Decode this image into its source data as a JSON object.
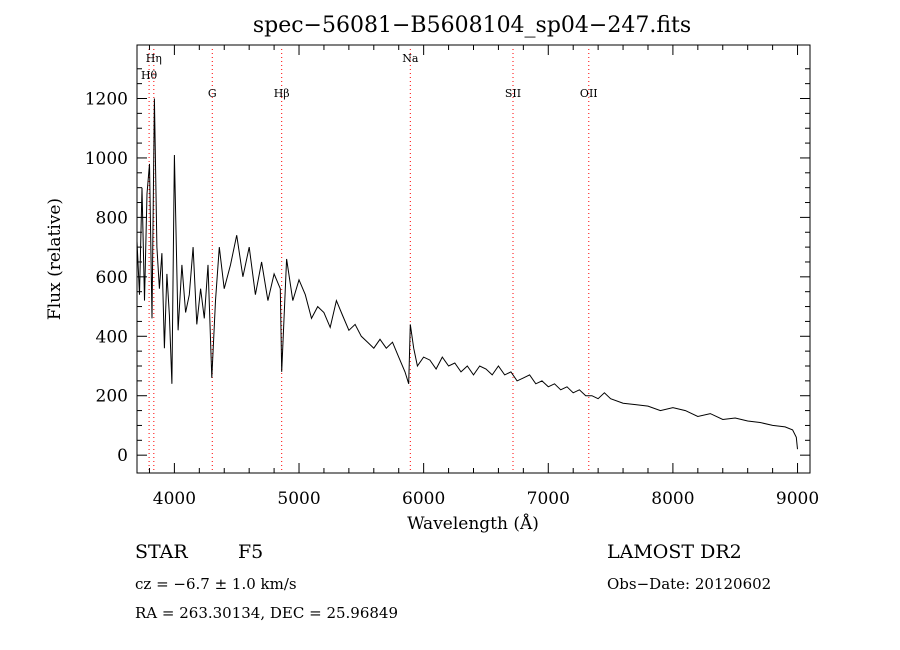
{
  "chart_data": {
    "type": "line",
    "title": "spec−56081−B5608104_sp04−247.fits",
    "xlabel": "Wavelength (Å)",
    "ylabel": "Flux (relative)",
    "xlim": [
      3700,
      9100
    ],
    "ylim": [
      -60,
      1380
    ],
    "x_ticks": [
      4000,
      5000,
      6000,
      7000,
      8000,
      9000
    ],
    "y_ticks": [
      0,
      200,
      400,
      600,
      800,
      1000,
      1200
    ],
    "line_color": "#000000",
    "marker_line_color": "#ff0000",
    "grid": false,
    "spectral_lines": [
      {
        "label": "Hη",
        "wavelength": 3835,
        "label_row": 1
      },
      {
        "label": "Hθ",
        "wavelength": 3797,
        "label_row": 2
      },
      {
        "label": "G",
        "wavelength": 4304,
        "label_row": 3
      },
      {
        "label": "Hβ",
        "wavelength": 4861,
        "label_row": 3
      },
      {
        "label": "Na",
        "wavelength": 5893,
        "label_row": 1
      },
      {
        "label": "SII",
        "wavelength": 6717,
        "label_row": 3
      },
      {
        "label": "OII",
        "wavelength": 7325,
        "label_row": 3
      }
    ],
    "series": [
      {
        "x": [
          3700,
          3720,
          3740,
          3760,
          3780,
          3800,
          3820,
          3840,
          3860,
          3880,
          3900,
          3920,
          3940,
          3960,
          3980,
          4000,
          4030,
          4060,
          4090,
          4120,
          4150,
          4180,
          4210,
          4240,
          4270,
          4300,
          4330,
          4360,
          4400,
          4450,
          4500,
          4550,
          4600,
          4650,
          4700,
          4750,
          4800,
          4850,
          4861,
          4900,
          4950,
          5000,
          5050,
          5100,
          5150,
          5200,
          5250,
          5300,
          5350,
          5400,
          5450,
          5500,
          5550,
          5600,
          5650,
          5700,
          5750,
          5800,
          5850,
          5880,
          5893,
          5920,
          5950,
          6000,
          6050,
          6100,
          6150,
          6200,
          6250,
          6300,
          6350,
          6400,
          6450,
          6500,
          6550,
          6600,
          6650,
          6700,
          6750,
          6800,
          6850,
          6900,
          6950,
          7000,
          7050,
          7100,
          7150,
          7200,
          7250,
          7300,
          7350,
          7400,
          7450,
          7500,
          7600,
          7700,
          7800,
          7900,
          8000,
          8100,
          8200,
          8300,
          8400,
          8500,
          8600,
          8700,
          8800,
          8900,
          8960,
          8990,
          9000
        ],
        "y": [
          720,
          540,
          900,
          520,
          880,
          980,
          460,
          1200,
          700,
          560,
          680,
          360,
          610,
          470,
          240,
          1010,
          420,
          640,
          480,
          540,
          700,
          440,
          560,
          460,
          640,
          260,
          520,
          700,
          560,
          640,
          740,
          600,
          700,
          540,
          650,
          520,
          610,
          560,
          280,
          660,
          520,
          590,
          540,
          460,
          500,
          480,
          430,
          520,
          470,
          420,
          440,
          400,
          380,
          360,
          390,
          360,
          380,
          330,
          280,
          240,
          440,
          360,
          300,
          330,
          320,
          290,
          330,
          300,
          310,
          280,
          300,
          270,
          300,
          290,
          270,
          300,
          270,
          280,
          250,
          260,
          270,
          240,
          250,
          230,
          240,
          220,
          230,
          210,
          220,
          200,
          200,
          190,
          210,
          190,
          175,
          170,
          165,
          150,
          160,
          150,
          130,
          140,
          120,
          125,
          115,
          110,
          100,
          95,
          85,
          60,
          20
        ]
      }
    ]
  },
  "footer": {
    "object_type": "STAR",
    "subclass": "F5",
    "redshift": "cz = −6.7 ± 1.0 km/s",
    "coordinates": "RA = 263.30134, DEC =  25.96849",
    "survey": "LAMOST DR2",
    "obs_date": "Obs−Date: 20120602"
  }
}
